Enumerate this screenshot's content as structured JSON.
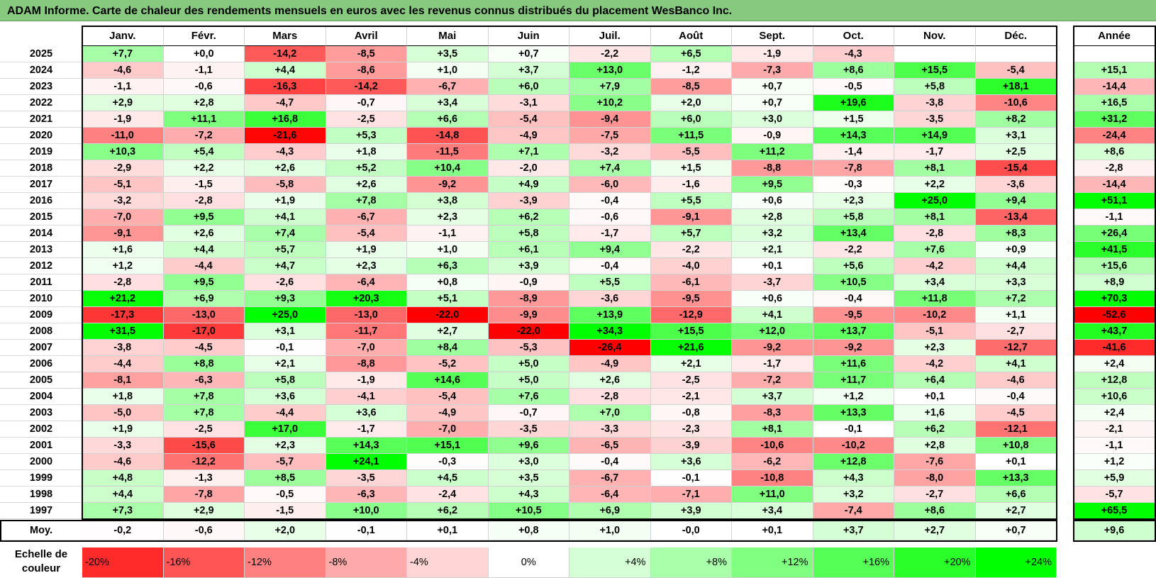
{
  "title": "ADAM Informe. Carte de chaleur des rendements mensuels en euros avec les revenus connus distribués du placement WesBanco Inc.",
  "chart_data": {
    "type": "heatmap",
    "months": [
      "Janv.",
      "Févr.",
      "Mars",
      "Avril",
      "Mai",
      "Juin",
      "Juil.",
      "Août",
      "Sept.",
      "Oct.",
      "Nov.",
      "Déc."
    ],
    "year_column_label": "Année",
    "avg_label": "Moy.",
    "scale_label": "Echelle de couleur",
    "rows": [
      {
        "year": "2025",
        "values": [
          "+7,7",
          "+0,0",
          "-14,2",
          "-8,5",
          "+3,5",
          "+0,7",
          "-2,2",
          "+6,5",
          "-1,9",
          "-4,3",
          "",
          ""
        ],
        "annual": ""
      },
      {
        "year": "2024",
        "values": [
          "-4,6",
          "-1,1",
          "+4,4",
          "-8,6",
          "+1,0",
          "+3,7",
          "+13,0",
          "-1,2",
          "-7,3",
          "+8,6",
          "+15,5",
          "-5,4"
        ],
        "annual": "+15,1"
      },
      {
        "year": "2023",
        "values": [
          "-1,1",
          "-0,6",
          "-16,3",
          "-14,2",
          "-6,7",
          "+6,0",
          "+7,9",
          "-8,5",
          "+0,7",
          "-0,5",
          "+5,8",
          "+18,1"
        ],
        "annual": "-14,4"
      },
      {
        "year": "2022",
        "values": [
          "+2,9",
          "+2,8",
          "-4,7",
          "-0,7",
          "+3,4",
          "-3,1",
          "+10,2",
          "+2,0",
          "+0,7",
          "+19,6",
          "-3,8",
          "-10,6"
        ],
        "annual": "+16,5"
      },
      {
        "year": "2021",
        "values": [
          "-1,9",
          "+11,1",
          "+16,8",
          "-2,5",
          "+6,6",
          "-5,4",
          "-9,4",
          "+6,0",
          "+3,0",
          "+1,5",
          "-3,5",
          "+8,2"
        ],
        "annual": "+31,2"
      },
      {
        "year": "2020",
        "values": [
          "-11,0",
          "-7,2",
          "-21,6",
          "+5,3",
          "-14,8",
          "-4,9",
          "-7,5",
          "+11,5",
          "-0,9",
          "+14,3",
          "+14,9",
          "+3,1"
        ],
        "annual": "-24,4"
      },
      {
        "year": "2019",
        "values": [
          "+10,3",
          "+5,4",
          "-4,3",
          "+1,8",
          "-11,5",
          "+7,1",
          "-3,2",
          "-5,5",
          "+11,2",
          "-1,4",
          "-1,7",
          "+2,5"
        ],
        "annual": "+8,6"
      },
      {
        "year": "2018",
        "values": [
          "-2,9",
          "+2,2",
          "+2,6",
          "+5,2",
          "+10,4",
          "-2,0",
          "+7,4",
          "+1,5",
          "-8,8",
          "-7,8",
          "+8,1",
          "-15,4"
        ],
        "annual": "-2,8"
      },
      {
        "year": "2017",
        "values": [
          "-5,1",
          "-1,5",
          "-5,8",
          "+2,6",
          "-9,2",
          "+4,9",
          "-6,0",
          "-1,6",
          "+9,5",
          "-0,3",
          "+2,2",
          "-3,6"
        ],
        "annual": "-14,4"
      },
      {
        "year": "2016",
        "values": [
          "-3,2",
          "-2,8",
          "+1,9",
          "+7,8",
          "+3,8",
          "-3,9",
          "-0,4",
          "+5,5",
          "+0,6",
          "+2,3",
          "+25,0",
          "+9,4"
        ],
        "annual": "+51,1"
      },
      {
        "year": "2015",
        "values": [
          "-7,0",
          "+9,5",
          "+4,1",
          "-6,7",
          "+2,3",
          "+6,2",
          "-0,6",
          "-9,1",
          "+2,8",
          "+5,8",
          "+8,1",
          "-13,4"
        ],
        "annual": "-1,1"
      },
      {
        "year": "2014",
        "values": [
          "-9,1",
          "+2,6",
          "+7,4",
          "-5,4",
          "-1,1",
          "+5,8",
          "-1,7",
          "+5,7",
          "+3,2",
          "+13,4",
          "-2,8",
          "+8,3"
        ],
        "annual": "+26,4"
      },
      {
        "year": "2013",
        "values": [
          "+1,6",
          "+4,4",
          "+5,7",
          "+1,9",
          "+1,0",
          "+6,1",
          "+9,4",
          "-2,2",
          "+2,1",
          "-2,2",
          "+7,6",
          "+0,9"
        ],
        "annual": "+41,5"
      },
      {
        "year": "2012",
        "values": [
          "+1,2",
          "-4,4",
          "+4,7",
          "+2,3",
          "+6,3",
          "+3,9",
          "-0,4",
          "-4,0",
          "+0,1",
          "+5,6",
          "-4,2",
          "+4,4"
        ],
        "annual": "+15,6"
      },
      {
        "year": "2011",
        "values": [
          "-2,8",
          "+9,5",
          "-2,6",
          "-6,4",
          "+0,8",
          "-0,9",
          "+5,5",
          "-6,1",
          "-3,7",
          "+10,5",
          "+3,4",
          "+3,3"
        ],
        "annual": "+8,9"
      },
      {
        "year": "2010",
        "values": [
          "+21,2",
          "+6,9",
          "+9,3",
          "+20,3",
          "+5,1",
          "-8,9",
          "-3,6",
          "-9,5",
          "+0,6",
          "-0,4",
          "+11,8",
          "+7,2"
        ],
        "annual": "+70,3"
      },
      {
        "year": "2009",
        "values": [
          "-17,3",
          "-13,0",
          "+25,0",
          "-13,0",
          "-22,0",
          "-9,9",
          "+13,9",
          "-12,9",
          "+4,1",
          "-9,5",
          "-10,2",
          "+1,1"
        ],
        "annual": "-52,6"
      },
      {
        "year": "2008",
        "values": [
          "+31,5",
          "-17,0",
          "+3,1",
          "-11,7",
          "+2,7",
          "-22,0",
          "+34,3",
          "+15,5",
          "+12,0",
          "+13,7",
          "-5,1",
          "-2,7"
        ],
        "annual": "+43,7"
      },
      {
        "year": "2007",
        "values": [
          "-3,8",
          "-4,5",
          "-0,1",
          "-7,0",
          "+8,4",
          "-5,3",
          "-26,4",
          "+21,6",
          "-9,2",
          "-9,2",
          "+2,3",
          "-12,7"
        ],
        "annual": "-41,6"
      },
      {
        "year": "2006",
        "values": [
          "-4,4",
          "+8,8",
          "+2,1",
          "-8,8",
          "-5,2",
          "+5,0",
          "-4,9",
          "+2,1",
          "-1,7",
          "+11,6",
          "-4,2",
          "+4,1"
        ],
        "annual": "+2,4"
      },
      {
        "year": "2005",
        "values": [
          "-8,1",
          "-6,3",
          "+5,8",
          "-1,9",
          "+14,6",
          "+5,0",
          "+2,6",
          "-2,5",
          "-7,2",
          "+11,7",
          "+6,4",
          "-4,6"
        ],
        "annual": "+12,8"
      },
      {
        "year": "2004",
        "values": [
          "+1,8",
          "+7,8",
          "+3,6",
          "-4,1",
          "-5,4",
          "+7,6",
          "-2,8",
          "-2,1",
          "+3,7",
          "+1,2",
          "+0,1",
          "-0,4"
        ],
        "annual": "+10,6"
      },
      {
        "year": "2003",
        "values": [
          "-5,0",
          "+7,8",
          "-4,4",
          "+3,6",
          "-4,9",
          "-0,7",
          "+7,0",
          "-0,8",
          "-8,3",
          "+13,3",
          "+1,6",
          "-4,5"
        ],
        "annual": "+2,4"
      },
      {
        "year": "2002",
        "values": [
          "+1,9",
          "-2,5",
          "+17,0",
          "-1,7",
          "-7,0",
          "-3,5",
          "-3,3",
          "-2,3",
          "+8,1",
          "-0,1",
          "+6,2",
          "-12,1"
        ],
        "annual": "-2,1"
      },
      {
        "year": "2001",
        "values": [
          "-3,3",
          "-15,6",
          "+2,3",
          "+14,3",
          "+15,1",
          "+9,6",
          "-6,5",
          "-3,9",
          "-10,6",
          "-10,2",
          "+2,8",
          "+10,8"
        ],
        "annual": "-1,1"
      },
      {
        "year": "2000",
        "values": [
          "-4,6",
          "-12,2",
          "-5,7",
          "+24,1",
          "-0,3",
          "+3,0",
          "-0,4",
          "+3,6",
          "-6,2",
          "+12,8",
          "-7,6",
          "+0,1"
        ],
        "annual": "+1,2"
      },
      {
        "year": "1999",
        "values": [
          "+4,8",
          "-1,3",
          "+8,5",
          "-3,5",
          "+4,5",
          "+3,5",
          "-6,7",
          "-0,1",
          "-10,8",
          "+4,3",
          "-8,0",
          "+13,3"
        ],
        "annual": "+5,9"
      },
      {
        "year": "1998",
        "values": [
          "+4,4",
          "-7,8",
          "-0,5",
          "-6,3",
          "-2,4",
          "+4,3",
          "-6,4",
          "-7,1",
          "+11,0",
          "+3,2",
          "-2,7",
          "+6,6"
        ],
        "annual": "-5,7"
      },
      {
        "year": "1997",
        "values": [
          "+7,3",
          "+2,9",
          "-1,5",
          "+10,0",
          "+6,2",
          "+10,5",
          "+6,9",
          "+3,9",
          "+3,4",
          "-7,4",
          "+8,6",
          "+2,7"
        ],
        "annual": "+65,5"
      }
    ],
    "averages": {
      "values": [
        "-0,2",
        "-0,6",
        "+2,0",
        "-0,1",
        "+0,1",
        "+0,8",
        "+1,0",
        "-0,0",
        "+0,1",
        "+3,7",
        "+2,7",
        "+0,7"
      ],
      "annual": "+9,6"
    },
    "scale": [
      "-20%",
      "-16%",
      "-12%",
      "-8%",
      "-4%",
      "0%",
      "+4%",
      "+8%",
      "+12%",
      "+16%",
      "+20%",
      "+24%"
    ],
    "colors": {
      "positive": "#00ff00",
      "negative": "#ff0000",
      "neutral": "#ffffff",
      "title_bg": "#86c97f"
    }
  }
}
